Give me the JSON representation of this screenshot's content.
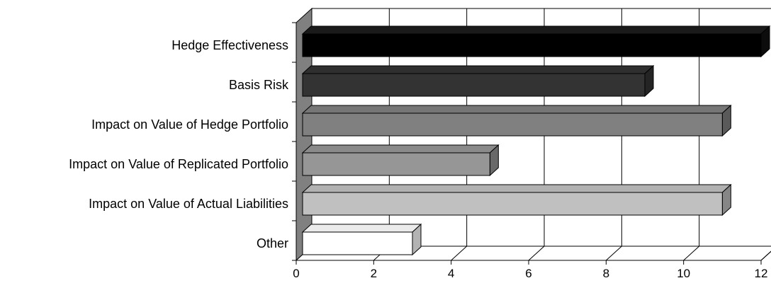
{
  "chart_data": {
    "type": "bar",
    "orientation": "horizontal",
    "style": "3d",
    "title": "",
    "xlabel": "",
    "ylabel": "",
    "categories": [
      "Hedge Effectiveness",
      "Basis Risk",
      "Impact on Value of Hedge Portfolio",
      "Impact on Value of Replicated Portfolio",
      "Impact on Value of Actual Liabilities",
      "Other"
    ],
    "values": [
      12,
      9,
      11,
      5,
      11,
      3
    ],
    "xlim": [
      0,
      12
    ],
    "xticks": [
      "0",
      "2",
      "4",
      "6",
      "8",
      "10",
      "12"
    ],
    "grid": true,
    "legend": "none",
    "colors": [
      "#000000",
      "#333333",
      "#808080",
      "#969696",
      "#c0c0c0",
      "#ffffff"
    ]
  }
}
